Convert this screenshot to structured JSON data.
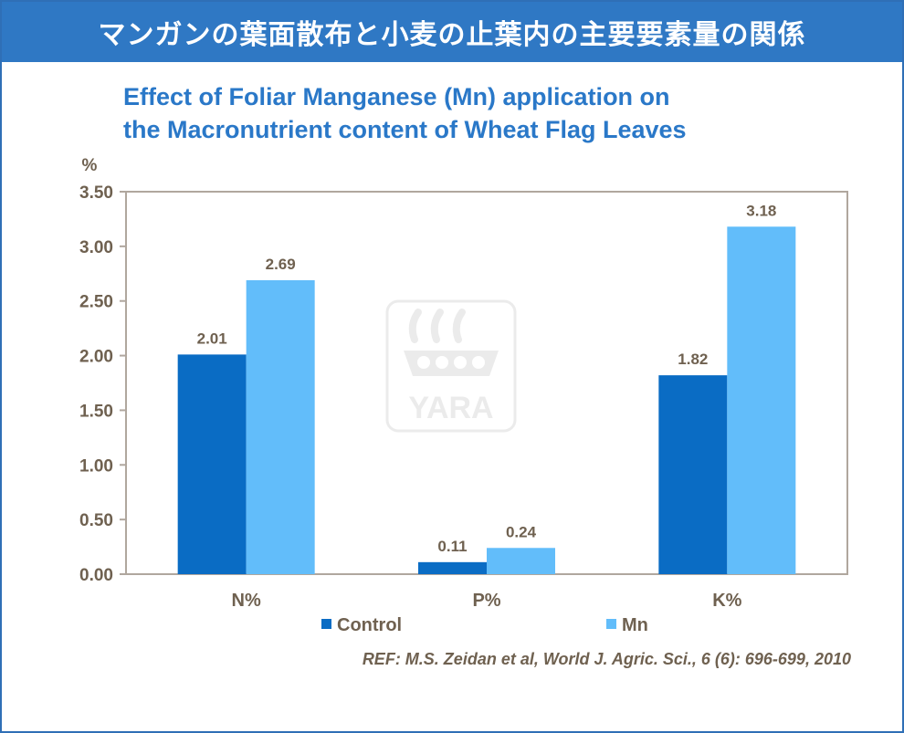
{
  "banner": {
    "text": "マンガンの葉面散布と小麦の止葉内の主要要素量の関係"
  },
  "title": {
    "line1": "Effect of Foliar Manganese (Mn) application on",
    "line2": "the Macronutrient content of Wheat Flag Leaves"
  },
  "reference": "REF: M.S. Zeidan et al, World J. Agric. Sci., 6 (6): 696-699, 2010",
  "watermark": {
    "text": "YARA",
    "icon": "yara-viking-ship-logo"
  },
  "colors": {
    "control": "#0a6cc4",
    "mn": "#62bdfa",
    "axis": "#b0a79e",
    "text": "#6f6150"
  },
  "chart_data": {
    "type": "bar",
    "title": "",
    "ylabel": "%",
    "xlabel": "",
    "categories": [
      "N%",
      "P%",
      "K%"
    ],
    "series": [
      {
        "name": "Control",
        "values": [
          2.01,
          0.11,
          1.82
        ],
        "labels": [
          "2.01",
          "0.11",
          "1.82"
        ]
      },
      {
        "name": "Mn",
        "values": [
          2.69,
          0.24,
          3.18
        ],
        "labels": [
          "2.69",
          "0.24",
          "3.18"
        ]
      }
    ],
    "ylim": [
      0,
      3.5
    ],
    "yticks": [
      "0.00",
      "0.50",
      "1.00",
      "1.50",
      "2.00",
      "2.50",
      "3.00",
      "3.50"
    ],
    "grid": false,
    "legend_position": "bottom"
  }
}
